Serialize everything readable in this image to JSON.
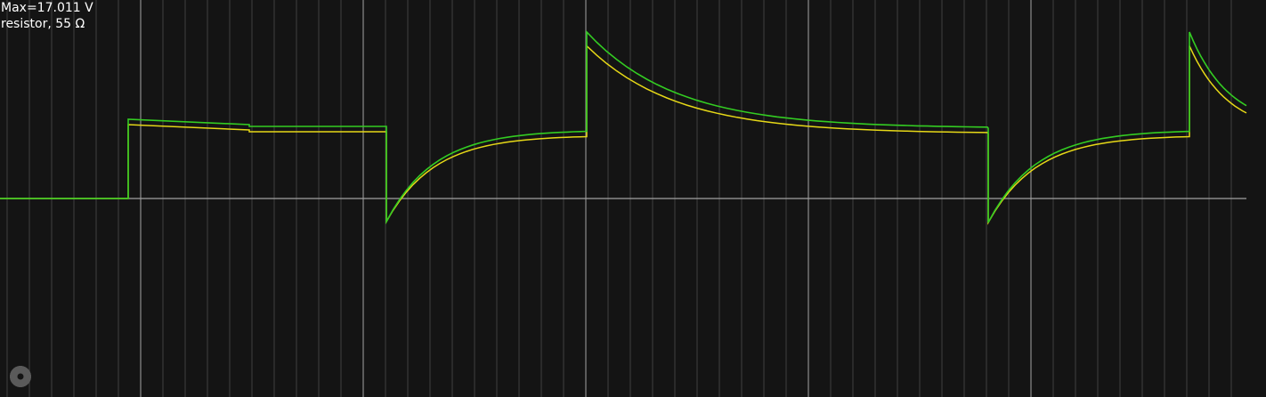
{
  "scope": {
    "max_label": "Max=17.011 V",
    "element_label": "resistor, 55 Ω",
    "background_color": "#141414",
    "grid_color_minor": "#404040",
    "grid_color_major": "#8c8c8c",
    "axis_color": "#a0a0a0"
  },
  "traces": [
    {
      "color": "#33cc22",
      "icon": "trace-line"
    },
    {
      "color": "#e6d817",
      "icon": "trace-line"
    }
  ],
  "settings": {
    "icon": "gear-icon",
    "color": "#5a5a5a"
  }
}
